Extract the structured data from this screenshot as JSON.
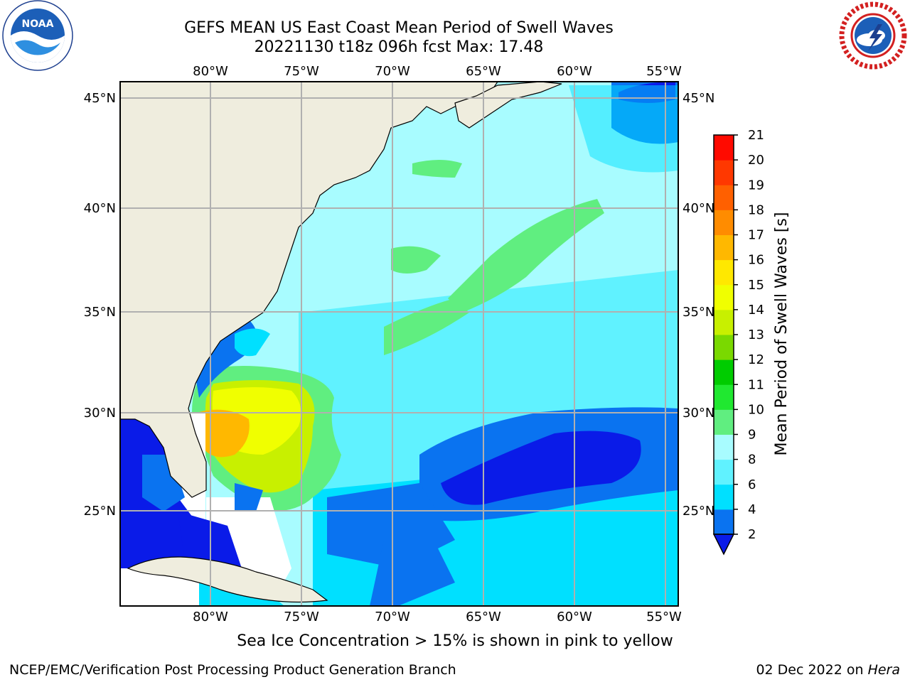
{
  "header": {
    "title_line1": "GEFS MEAN US East Coast Mean Period of Swell Waves",
    "title_line2": "20221130 t18z 096h fcst   Max: 17.48"
  },
  "logos": {
    "left": "noaa-logo",
    "left_text": "NOAA",
    "right": "nws-logo"
  },
  "map": {
    "type": "contour-map",
    "region": "US East Coast / Western North Atlantic",
    "lon_ticks": [
      "80°W",
      "75°W",
      "70°W",
      "65°W",
      "60°W",
      "55°W"
    ],
    "lat_ticks": [
      "45°N",
      "40°N",
      "35°N",
      "30°N",
      "25°N"
    ],
    "land_color": "#efedde",
    "grid": true
  },
  "colorbar": {
    "label": "Mean Period of Swell Waves [s]",
    "ticks": [
      "2",
      "4",
      "6",
      "8",
      "9",
      "10",
      "11",
      "12",
      "13",
      "14",
      "15",
      "16",
      "17",
      "18",
      "19",
      "20",
      "21"
    ],
    "colors": [
      "#0a1be8",
      "#0a73f0",
      "#00e0ff",
      "#60f2ff",
      "#a8fcff",
      "#60ee80",
      "#20e830",
      "#00cc00",
      "#7ad900",
      "#c8f000",
      "#f0ff00",
      "#ffe800",
      "#ffb800",
      "#ff8c00",
      "#ff6000",
      "#ff3800",
      "#ff0a00"
    ],
    "extend": "min"
  },
  "footer": {
    "sea_ice_note": "Sea Ice Concentration > 15% is shown in pink to yellow",
    "credit_left": "NCEP/EMC/Verification Post Processing Product Generation Branch",
    "credit_right_date": "02 Dec 2022 on ",
    "credit_right_host": "Hera"
  }
}
